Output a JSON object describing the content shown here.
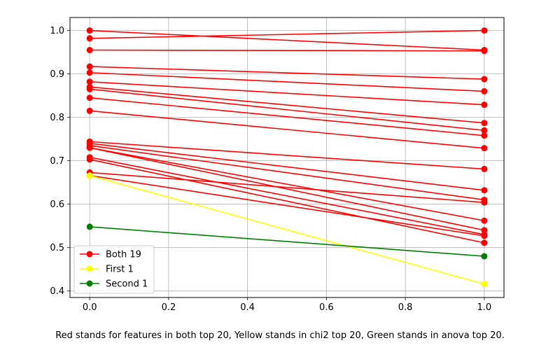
{
  "chart_data": {
    "type": "line",
    "title": "",
    "xlabel": "",
    "ylabel": "",
    "xlim": [
      -0.05,
      1.05
    ],
    "ylim": [
      0.385,
      1.03
    ],
    "xticks": [
      0.0,
      0.2,
      0.4,
      0.6,
      0.8,
      1.0
    ],
    "xtick_labels": [
      "0.0",
      "0.2",
      "0.4",
      "0.6",
      "0.8",
      "1.0"
    ],
    "yticks": [
      0.4,
      0.5,
      0.6,
      0.7,
      0.8,
      0.9,
      1.0
    ],
    "ytick_labels": [
      "0.4",
      "0.5",
      "0.6",
      "0.7",
      "0.8",
      "0.9",
      "1.0"
    ],
    "grid": true,
    "legend_position": "lower-left",
    "legend": [
      {
        "label": "Both 19",
        "color": "#ff0000"
      },
      {
        "label": "First 1",
        "color": "#ffff00"
      },
      {
        "label": "Second 1",
        "color": "#008000"
      }
    ],
    "x": [
      0,
      1
    ],
    "series": [
      {
        "group": "Both 19",
        "color": "#ff0000",
        "values": [
          1.0,
          0.955
        ]
      },
      {
        "group": "Both 19",
        "color": "#ff0000",
        "values": [
          0.982,
          1.0
        ]
      },
      {
        "group": "Both 19",
        "color": "#ff0000",
        "values": [
          0.955,
          0.953
        ]
      },
      {
        "group": "Both 19",
        "color": "#ff0000",
        "values": [
          0.917,
          0.888
        ]
      },
      {
        "group": "Both 19",
        "color": "#ff0000",
        "values": [
          0.903,
          0.86
        ]
      },
      {
        "group": "Both 19",
        "color": "#ff0000",
        "values": [
          0.882,
          0.829
        ]
      },
      {
        "group": "Both 19",
        "color": "#ff0000",
        "values": [
          0.87,
          0.787
        ]
      },
      {
        "group": "Both 19",
        "color": "#ff0000",
        "values": [
          0.865,
          0.77
        ]
      },
      {
        "group": "Both 19",
        "color": "#ff0000",
        "values": [
          0.845,
          0.758
        ]
      },
      {
        "group": "Both 19",
        "color": "#ff0000",
        "values": [
          0.815,
          0.729
        ]
      },
      {
        "group": "Both 19",
        "color": "#ff0000",
        "values": [
          0.744,
          0.681
        ]
      },
      {
        "group": "Both 19",
        "color": "#ff0000",
        "values": [
          0.74,
          0.632
        ]
      },
      {
        "group": "Both 19",
        "color": "#ff0000",
        "values": [
          0.735,
          0.61
        ]
      },
      {
        "group": "Both 19",
        "color": "#ff0000",
        "values": [
          0.73,
          0.562
        ]
      },
      {
        "group": "Both 19",
        "color": "#ff0000",
        "values": [
          0.73,
          0.54
        ]
      },
      {
        "group": "Both 19",
        "color": "#ff0000",
        "values": [
          0.708,
          0.53
        ]
      },
      {
        "group": "Both 19",
        "color": "#ff0000",
        "values": [
          0.703,
          0.511
        ]
      },
      {
        "group": "Both 19",
        "color": "#ff0000",
        "values": [
          0.673,
          0.604
        ]
      },
      {
        "group": "Both 19",
        "color": "#ff0000",
        "values": [
          0.666,
          0.527
        ]
      },
      {
        "group": "First 1",
        "color": "#ffff00",
        "values": [
          0.666,
          0.416
        ]
      },
      {
        "group": "Second 1",
        "color": "#008000",
        "values": [
          0.548,
          0.48
        ]
      }
    ]
  },
  "caption": "Red stands for features in both top 20, Yellow stands in chi2 top 20, Green stands in anova top 20."
}
